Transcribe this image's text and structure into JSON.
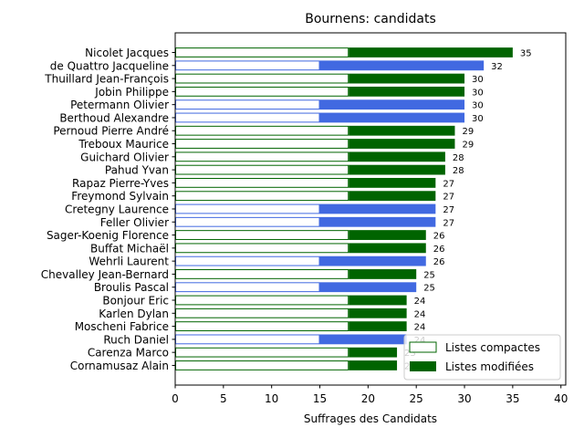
{
  "chart_data": {
    "type": "bar",
    "orientation": "horizontal",
    "stacked": true,
    "title": "Bournens: candidats",
    "xlabel": "Suffrages des Candidats",
    "ylabel": "",
    "xlim": [
      0,
      40.5
    ],
    "xticks": [
      0,
      5,
      10,
      15,
      20,
      25,
      30,
      35,
      40
    ],
    "grid": false,
    "legend_position": "lower-right",
    "legend": [
      {
        "label": "Listes compactes",
        "style": "hollow",
        "edge_color": "#006400"
      },
      {
        "label": "Listes modifiées",
        "style": "filled",
        "color": "#006400"
      }
    ],
    "colors": {
      "green": "#006400",
      "blue": "#4169e1"
    },
    "candidates": [
      {
        "name": "Nicolet Jacques",
        "compact": 18,
        "total": 35,
        "total_label": "35",
        "color": "green"
      },
      {
        "name": "de Quattro Jacqueline",
        "compact": 15,
        "total": 32,
        "total_label": "32",
        "color": "blue"
      },
      {
        "name": "Thuillard Jean-François",
        "compact": 18,
        "total": 30,
        "total_label": "30",
        "color": "green"
      },
      {
        "name": "Jobin Philippe",
        "compact": 18,
        "total": 30,
        "total_label": "30",
        "color": "green"
      },
      {
        "name": "Petermann Olivier",
        "compact": 15,
        "total": 30,
        "total_label": "30",
        "color": "blue"
      },
      {
        "name": "Berthoud Alexandre",
        "compact": 15,
        "total": 30,
        "total_label": "30",
        "color": "blue"
      },
      {
        "name": "Pernoud Pierre André",
        "compact": 18,
        "total": 29,
        "total_label": "29",
        "color": "green"
      },
      {
        "name": "Treboux Maurice",
        "compact": 18,
        "total": 29,
        "total_label": "29",
        "color": "green"
      },
      {
        "name": "Guichard Olivier",
        "compact": 18,
        "total": 28,
        "total_label": "28",
        "color": "green"
      },
      {
        "name": "Pahud Yvan",
        "compact": 18,
        "total": 28,
        "total_label": "28",
        "color": "green"
      },
      {
        "name": "Rapaz Pierre-Yves",
        "compact": 18,
        "total": 27,
        "total_label": "27",
        "color": "green"
      },
      {
        "name": "Freymond Sylvain",
        "compact": 18,
        "total": 27,
        "total_label": "27",
        "color": "green"
      },
      {
        "name": "Cretegny Laurence",
        "compact": 15,
        "total": 27,
        "total_label": "27",
        "color": "blue"
      },
      {
        "name": "Feller Olivier",
        "compact": 15,
        "total": 27,
        "total_label": "27",
        "color": "blue"
      },
      {
        "name": "Sager-Koenig Florence",
        "compact": 18,
        "total": 26,
        "total_label": "26",
        "color": "green"
      },
      {
        "name": "Buffat Michaël",
        "compact": 18,
        "total": 26,
        "total_label": "26",
        "color": "green"
      },
      {
        "name": "Wehrli Laurent",
        "compact": 15,
        "total": 26,
        "total_label": "26",
        "color": "blue"
      },
      {
        "name": "Chevalley Jean-Bernard",
        "compact": 18,
        "total": 25,
        "total_label": "25",
        "color": "green"
      },
      {
        "name": "Broulis Pascal",
        "compact": 15,
        "total": 25,
        "total_label": "25",
        "color": "blue"
      },
      {
        "name": "Bonjour Eric",
        "compact": 18,
        "total": 24,
        "total_label": "24",
        "color": "green"
      },
      {
        "name": "Karlen Dylan",
        "compact": 18,
        "total": 24,
        "total_label": "24",
        "color": "green"
      },
      {
        "name": "Moscheni Fabrice",
        "compact": 18,
        "total": 24,
        "total_label": "24",
        "color": "green"
      },
      {
        "name": "Ruch Daniel",
        "compact": 15,
        "total": 24,
        "total_label": "24",
        "color": "blue"
      },
      {
        "name": "Carenza Marco",
        "compact": 18,
        "total": 23,
        "total_label": "23",
        "color": "green"
      },
      {
        "name": "Cornamusaz Alain",
        "compact": 18,
        "total": 23,
        "total_label": "23",
        "color": "green"
      }
    ]
  }
}
